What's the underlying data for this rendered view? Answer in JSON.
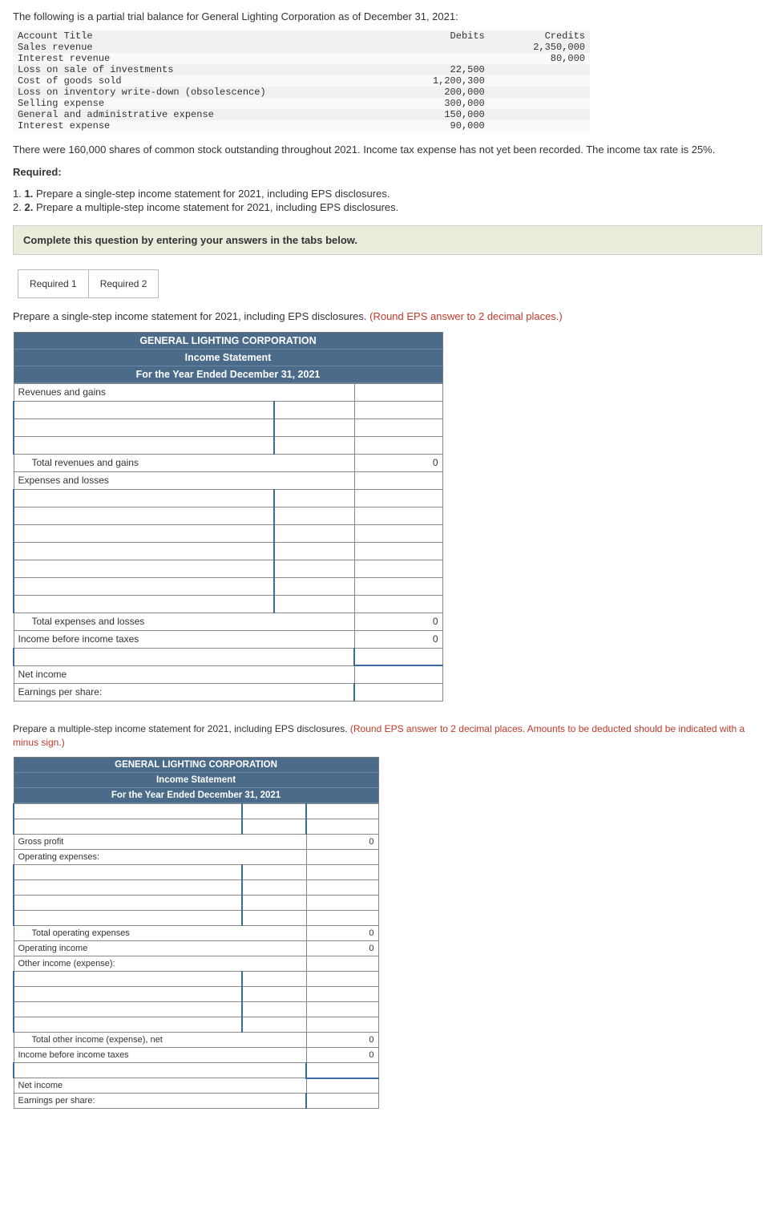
{
  "intro": "The following is a partial trial balance for General Lighting Corporation as of December 31, 2021:",
  "trial_balance": {
    "col_headers": [
      "Account Title",
      "Debits",
      "Credits"
    ],
    "rows": [
      {
        "title": "Sales revenue",
        "debit": "",
        "credit": "2,350,000"
      },
      {
        "title": "Interest revenue",
        "debit": "",
        "credit": "80,000"
      },
      {
        "title": "Loss on sale of investments",
        "debit": "22,500",
        "credit": ""
      },
      {
        "title": "Cost of goods sold",
        "debit": "1,200,300",
        "credit": ""
      },
      {
        "title": "Loss on inventory write-down (obsolescence)",
        "debit": "200,000",
        "credit": ""
      },
      {
        "title": "Selling expense",
        "debit": "300,000",
        "credit": ""
      },
      {
        "title": "General and administrative expense",
        "debit": "150,000",
        "credit": ""
      },
      {
        "title": "Interest expense",
        "debit": "90,000",
        "credit": ""
      }
    ]
  },
  "context": "There were 160,000 shares of common stock outstanding throughout 2021. Income tax expense has not yet been recorded. The income tax rate is 25%.",
  "required_label": "Required:",
  "requirements": [
    "Prepare a single-step income statement for 2021, including EPS disclosures.",
    "Prepare a multiple-step income statement for 2021, including EPS disclosures."
  ],
  "complete_hint": "Complete this question by entering your answers in the tabs below.",
  "tabs": [
    "Required 1",
    "Required 2"
  ],
  "req1": {
    "prompt_black": "Prepare a single-step income statement for 2021, including EPS disclosures. ",
    "prompt_red": "(Round EPS answer to 2 decimal places.)",
    "header": {
      "company": "GENERAL LIGHTING CORPORATION",
      "title": "Income Statement",
      "period": "For the Year Ended December 31, 2021"
    },
    "rows": {
      "rev_gains": "Revenues and gains",
      "total_rev_gains": "Total revenues and gains",
      "total_rev_gains_val": "0",
      "exp_losses": "Expenses and losses",
      "total_exp_losses": "Total expenses and losses",
      "total_exp_losses_val": "0",
      "inc_before_tax": "Income before income taxes",
      "inc_before_tax_val": "0",
      "net_income": "Net income",
      "eps": "Earnings per share:"
    },
    "col_widths": {
      "c1": 325,
      "c2": 100,
      "c3": 110
    }
  },
  "req2": {
    "prompt_black": "Prepare a multiple-step income statement for 2021, including EPS disclosures. ",
    "prompt_red": "(Round EPS answer to 2 decimal places. Amounts to be deducted should be indicated with a minus sign.)",
    "header": {
      "company": "GENERAL LIGHTING CORPORATION",
      "title": "Income Statement",
      "period": "For the Year Ended December 31, 2021"
    },
    "rows": {
      "gross_profit": "Gross profit",
      "gross_profit_val": "0",
      "op_exp": "Operating expenses:",
      "total_op_exp": "Total operating expenses",
      "total_op_exp_val": "0",
      "op_income": "Operating income",
      "op_income_val": "0",
      "other": "Other income (expense):",
      "total_other": "Total other income (expense), net",
      "total_other_val": "0",
      "inc_before_tax": "Income before income taxes",
      "inc_before_tax_val": "0",
      "net_income": "Net income",
      "eps": "Earnings per share:"
    },
    "col_widths": {
      "c1": 285,
      "c2": 80,
      "c3": 90
    }
  }
}
